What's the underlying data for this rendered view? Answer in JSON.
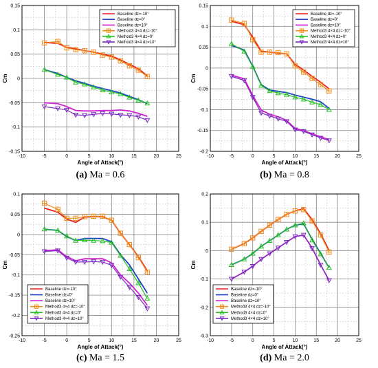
{
  "colors": {
    "baseline_dz_neg10": "#e8201c",
    "baseline_dz_0": "#2040c8",
    "baseline_dz_10": "#d020d0",
    "method_dz_neg10": "#f08c1e",
    "method_dz_0": "#20c020",
    "method_dz_10": "#7a2cc0"
  },
  "chart_data": [
    {
      "type": "line",
      "caption_letter": "(a)",
      "caption_rest": " Ma = 0.6",
      "xlabel": "Angle of Attack(°)",
      "ylabel": "Cm",
      "xlim": [
        -10,
        25
      ],
      "ylim": [
        -0.15,
        0.15
      ],
      "xticks": [
        -10,
        -5,
        0,
        5,
        10,
        15,
        20,
        25
      ],
      "yticks": [
        -0.15,
        -0.1,
        -0.05,
        0,
        0.05,
        0.1,
        0.15
      ],
      "ytick_labels": [
        "-0.15",
        "-0.1",
        "-0.05",
        "0",
        "0.05",
        "0.1",
        "0.15"
      ],
      "x": [
        -5,
        -2,
        0,
        2,
        4,
        6,
        8,
        10,
        12,
        14,
        16,
        18
      ],
      "legend": "top-right",
      "legend_labels": [
        "Baseline dz=-10°",
        "Baseline dz=0°",
        "Baseline dz=10°",
        "Method3 4×4 dz=-10°",
        "Method3 4×4 dz=0°",
        "Method3 4×4 dz=10°"
      ],
      "series": [
        {
          "name": "Baseline dz=-10°",
          "values": [
            0.074,
            0.072,
            0.064,
            0.061,
            0.057,
            0.054,
            0.05,
            0.046,
            0.038,
            0.029,
            0.02,
            0.005
          ]
        },
        {
          "name": "Baseline dz=0°",
          "values": [
            0.018,
            0.01,
            0.002,
            -0.005,
            -0.01,
            -0.016,
            -0.021,
            -0.025,
            -0.03,
            -0.037,
            -0.044,
            -0.052
          ]
        },
        {
          "name": "Baseline dz=10°",
          "values": [
            -0.05,
            -0.052,
            -0.058,
            -0.066,
            -0.067,
            -0.067,
            -0.066,
            -0.066,
            -0.065,
            -0.067,
            -0.072,
            -0.078
          ]
        },
        {
          "name": "Method3 4×4 dz=-10°",
          "values": [
            0.073,
            0.076,
            0.063,
            0.059,
            0.057,
            0.054,
            0.048,
            0.044,
            0.036,
            0.026,
            0.017,
            0.004
          ]
        },
        {
          "name": "Method3 4×4 dz=0°",
          "values": [
            0.018,
            0.008,
            0.002,
            -0.008,
            -0.012,
            -0.018,
            -0.024,
            -0.028,
            -0.032,
            -0.039,
            -0.045,
            -0.051
          ]
        },
        {
          "name": "Method3 4×4 dz=10°",
          "values": [
            -0.058,
            -0.062,
            -0.065,
            -0.075,
            -0.076,
            -0.074,
            -0.072,
            -0.073,
            -0.075,
            -0.076,
            -0.079,
            -0.086
          ]
        }
      ]
    },
    {
      "type": "line",
      "caption_letter": "(b)",
      "caption_rest": " Ma = 0.8",
      "xlabel": "Angle of Attack(°)",
      "ylabel": "Cm",
      "xlim": [
        -10,
        25
      ],
      "ylim": [
        -0.2,
        0.15
      ],
      "xticks": [
        -10,
        -5,
        0,
        5,
        10,
        15,
        20,
        25
      ],
      "yticks": [
        -0.2,
        -0.15,
        -0.1,
        -0.05,
        0,
        0.05,
        0.1,
        0.15
      ],
      "ytick_labels": [
        "-0.2",
        "-0.15",
        "-0.1",
        "-0.05",
        "0",
        "0.05",
        "0.1",
        "0.15"
      ],
      "x": [
        -5,
        -2,
        0,
        2,
        4,
        6,
        8,
        10,
        12,
        14,
        16,
        18
      ],
      "legend": "top-right",
      "legend_labels": [
        "Baseline dz=-10°",
        "Baseline dz=0°",
        "Baseline dz=10°",
        "Method3 4×4 dz=-10°",
        "Method3 4×4 dz=0°",
        "Method3 4×4 dz=10°"
      ],
      "series": [
        {
          "name": "Baseline dz=-10°",
          "values": [
            0.112,
            0.104,
            0.074,
            0.04,
            0.038,
            0.036,
            0.034,
            0.009,
            -0.005,
            -0.02,
            -0.034,
            -0.05
          ]
        },
        {
          "name": "Baseline dz=0°",
          "values": [
            0.054,
            0.043,
            0.004,
            -0.04,
            -0.053,
            -0.056,
            -0.059,
            -0.065,
            -0.07,
            -0.075,
            -0.081,
            -0.097
          ]
        },
        {
          "name": "Baseline dz=10°",
          "values": [
            -0.017,
            -0.026,
            -0.066,
            -0.101,
            -0.111,
            -0.117,
            -0.126,
            -0.145,
            -0.15,
            -0.158,
            -0.165,
            -0.172
          ]
        },
        {
          "name": "Method3 4×4 dz=-10°",
          "values": [
            0.115,
            0.107,
            0.068,
            0.038,
            0.038,
            0.037,
            0.034,
            0.005,
            -0.01,
            -0.025,
            -0.04,
            -0.055
          ]
        },
        {
          "name": "Method3 4×4 dz=0°",
          "values": [
            0.058,
            0.04,
            0.003,
            -0.042,
            -0.055,
            -0.06,
            -0.064,
            -0.07,
            -0.075,
            -0.082,
            -0.088,
            -0.1
          ]
        },
        {
          "name": "Method3 4×4 dz=10°",
          "values": [
            -0.02,
            -0.03,
            -0.07,
            -0.108,
            -0.115,
            -0.122,
            -0.128,
            -0.148,
            -0.152,
            -0.16,
            -0.168,
            -0.174
          ]
        }
      ]
    },
    {
      "type": "line",
      "caption_letter": "(c)",
      "caption_rest": " Ma = 1.5",
      "xlabel": "Angle of Attack(°)",
      "ylabel": "Cm",
      "xlim": [
        -10,
        25
      ],
      "ylim": [
        -0.25,
        0.1
      ],
      "xticks": [
        -10,
        -5,
        0,
        5,
        10,
        15,
        20,
        25
      ],
      "yticks": [
        -0.25,
        -0.2,
        -0.15,
        -0.1,
        -0.05,
        0,
        0.05,
        0.1
      ],
      "ytick_labels": [
        "-0.25",
        "-0.2",
        "-0.15",
        "-0.1",
        "-0.05",
        "0",
        "0.05",
        "0.1"
      ],
      "x": [
        -5,
        -2,
        0,
        2,
        4,
        6,
        8,
        10,
        12,
        14,
        16,
        18
      ],
      "legend": "bottom-left",
      "legend_labels": [
        "Baseline dz=-10°",
        "Baseline dz=0°",
        "Baseline dz=10°",
        "Method3 4×4 dz=-10°",
        "Method3 4×4 dz=0°",
        "Method3 4×4 dz=10°"
      ],
      "series": [
        {
          "name": "Baseline dz=-10°",
          "values": [
            0.065,
            0.055,
            0.038,
            0.03,
            0.043,
            0.044,
            0.044,
            0.035,
            0.003,
            -0.025,
            -0.055,
            -0.09
          ]
        },
        {
          "name": "Baseline dz=0°",
          "values": [
            0.013,
            0.01,
            -0.005,
            -0.015,
            -0.01,
            -0.01,
            -0.01,
            -0.018,
            -0.05,
            -0.075,
            -0.11,
            -0.145
          ]
        },
        {
          "name": "Baseline dz=10°",
          "values": [
            -0.04,
            -0.038,
            -0.055,
            -0.065,
            -0.06,
            -0.06,
            -0.06,
            -0.07,
            -0.1,
            -0.12,
            -0.145,
            -0.175
          ]
        },
        {
          "name": "Method3 4×4 dz=-10°",
          "values": [
            0.077,
            0.062,
            0.04,
            0.04,
            0.044,
            0.045,
            0.045,
            0.035,
            0.003,
            -0.025,
            -0.057,
            -0.093
          ]
        },
        {
          "name": "Method3 4×4 dz=0°",
          "values": [
            0.013,
            0.01,
            -0.004,
            -0.015,
            -0.014,
            -0.015,
            -0.016,
            -0.02,
            -0.052,
            -0.085,
            -0.12,
            -0.158
          ]
        },
        {
          "name": "Method3 4×4 dz=10°",
          "values": [
            -0.042,
            -0.04,
            -0.058,
            -0.068,
            -0.068,
            -0.067,
            -0.068,
            -0.076,
            -0.105,
            -0.13,
            -0.155,
            -0.183
          ]
        }
      ]
    },
    {
      "type": "line",
      "caption_letter": "(d)",
      "caption_rest": " Ma = 2.0",
      "xlabel": "Angle of Attack(°)",
      "ylabel": "Cm",
      "xlim": [
        -10,
        25
      ],
      "ylim": [
        -0.3,
        0.2
      ],
      "xticks": [
        -10,
        -5,
        0,
        5,
        10,
        15,
        20,
        25
      ],
      "yticks": [
        -0.3,
        -0.2,
        -0.1,
        0,
        0.1,
        0.2
      ],
      "ytick_labels": [
        "-0.3",
        "-0.2",
        "-0.1",
        "0",
        "0.1",
        "0.2"
      ],
      "x": [
        -5,
        -2,
        0,
        2,
        4,
        6,
        8,
        10,
        12,
        14,
        16,
        18
      ],
      "legend": "bottom-left",
      "legend_labels": [
        "Baseline dz=-10°",
        "Baseline dz=0°",
        "Baseline dz=10°",
        "Method3 4×4 dz=-10°",
        "Method3 4×4 dz=0°",
        "Method3 4×4 dz=10°"
      ],
      "series": [
        {
          "name": "Baseline dz=-10°",
          "values": [
            0.005,
            0.025,
            0.045,
            0.068,
            0.09,
            0.11,
            0.128,
            0.14,
            0.148,
            0.11,
            0.06,
            0.0
          ]
        },
        {
          "name": "Baseline dz=0°",
          "values": [
            -0.05,
            -0.03,
            -0.01,
            0.015,
            0.035,
            0.055,
            0.075,
            0.09,
            0.095,
            0.04,
            -0.01,
            -0.06
          ]
        },
        {
          "name": "Baseline dz=10°",
          "values": [
            -0.1,
            -0.075,
            -0.055,
            -0.03,
            -0.01,
            0.01,
            0.03,
            0.05,
            0.055,
            0.01,
            -0.05,
            -0.105
          ]
        },
        {
          "name": "Method3 4×4 dz=-10°",
          "values": [
            0.005,
            0.025,
            0.045,
            0.068,
            0.09,
            0.11,
            0.128,
            0.14,
            0.145,
            0.105,
            0.055,
            -0.005
          ]
        },
        {
          "name": "Method3 4×4 dz=0°",
          "values": [
            -0.05,
            -0.03,
            -0.01,
            0.015,
            0.035,
            0.055,
            0.075,
            0.09,
            0.097,
            0.037,
            -0.012,
            -0.06
          ]
        },
        {
          "name": "Method3 4×4 dz=10°",
          "values": [
            -0.1,
            -0.075,
            -0.055,
            -0.03,
            -0.01,
            0.01,
            0.03,
            0.05,
            0.055,
            0.008,
            -0.05,
            -0.105
          ]
        }
      ]
    }
  ]
}
